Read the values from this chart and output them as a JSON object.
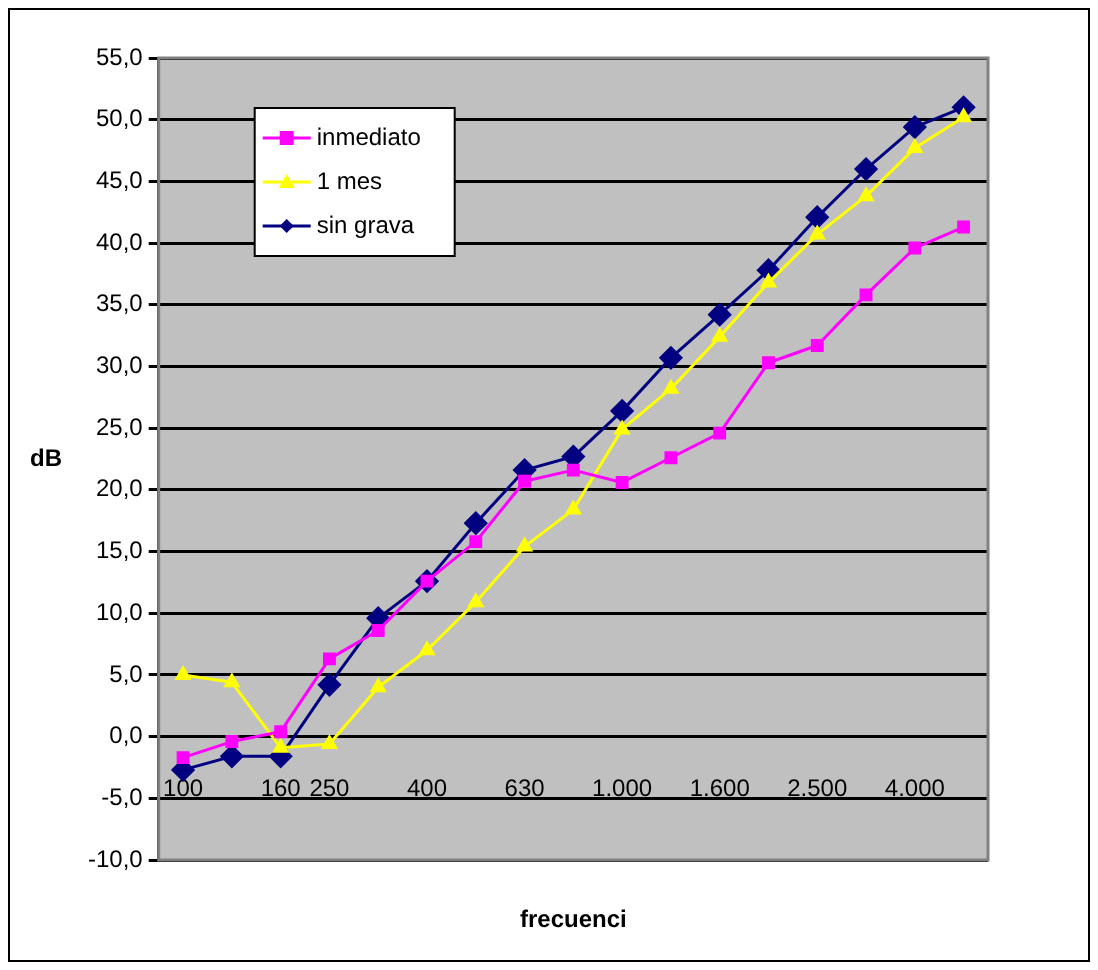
{
  "chart_data": {
    "type": "line",
    "xlabel": "frecuenci",
    "ylabel": "dB",
    "categories": [
      "100",
      null,
      "160",
      "250",
      null,
      "400",
      null,
      "630",
      null,
      "1.000",
      null,
      "1.600",
      null,
      "2.500",
      null,
      "4.000",
      null
    ],
    "series": [
      {
        "name": "inmediato",
        "color": "#ff00ff",
        "marker": "square",
        "values": [
          -1.7,
          -0.4,
          0.4,
          6.3,
          8.6,
          12.6,
          15.8,
          20.7,
          21.6,
          20.6,
          22.6,
          24.6,
          30.3,
          31.7,
          35.8,
          39.6,
          41.3
        ]
      },
      {
        "name": "1 mes",
        "color": "#ffff00",
        "marker": "triangle",
        "values": [
          5.0,
          4.4,
          -0.9,
          -0.6,
          4.0,
          7.0,
          10.9,
          15.4,
          18.4,
          24.9,
          28.2,
          32.4,
          36.8,
          40.7,
          43.8,
          47.7,
          50.2
        ]
      },
      {
        "name": "sin grava",
        "color": "#000080",
        "marker": "diamond",
        "values": [
          -2.7,
          -1.6,
          -1.6,
          4.2,
          9.6,
          12.6,
          17.3,
          21.6,
          22.7,
          26.4,
          30.7,
          34.2,
          37.8,
          42.1,
          46.0,
          49.4,
          51.0
        ]
      }
    ],
    "ylim": [
      -10,
      55
    ],
    "yticks": [
      {
        "value": -10,
        "label": "-10,0"
      },
      {
        "value": -5,
        "label": "-5,0"
      },
      {
        "value": 0,
        "label": "0,0"
      },
      {
        "value": 5,
        "label": "5,0"
      },
      {
        "value": 10,
        "label": "10,0"
      },
      {
        "value": 15,
        "label": "15,0"
      },
      {
        "value": 20,
        "label": "20,0"
      },
      {
        "value": 25,
        "label": "25,0"
      },
      {
        "value": 30,
        "label": "30,0"
      },
      {
        "value": 35,
        "label": "35,0"
      },
      {
        "value": 40,
        "label": "40,0"
      },
      {
        "value": 45,
        "label": "45,0"
      },
      {
        "value": 50,
        "label": "50,0"
      },
      {
        "value": 55,
        "label": "55,0"
      }
    ],
    "grid": "y",
    "legend": "top left",
    "line_style": "solid"
  }
}
